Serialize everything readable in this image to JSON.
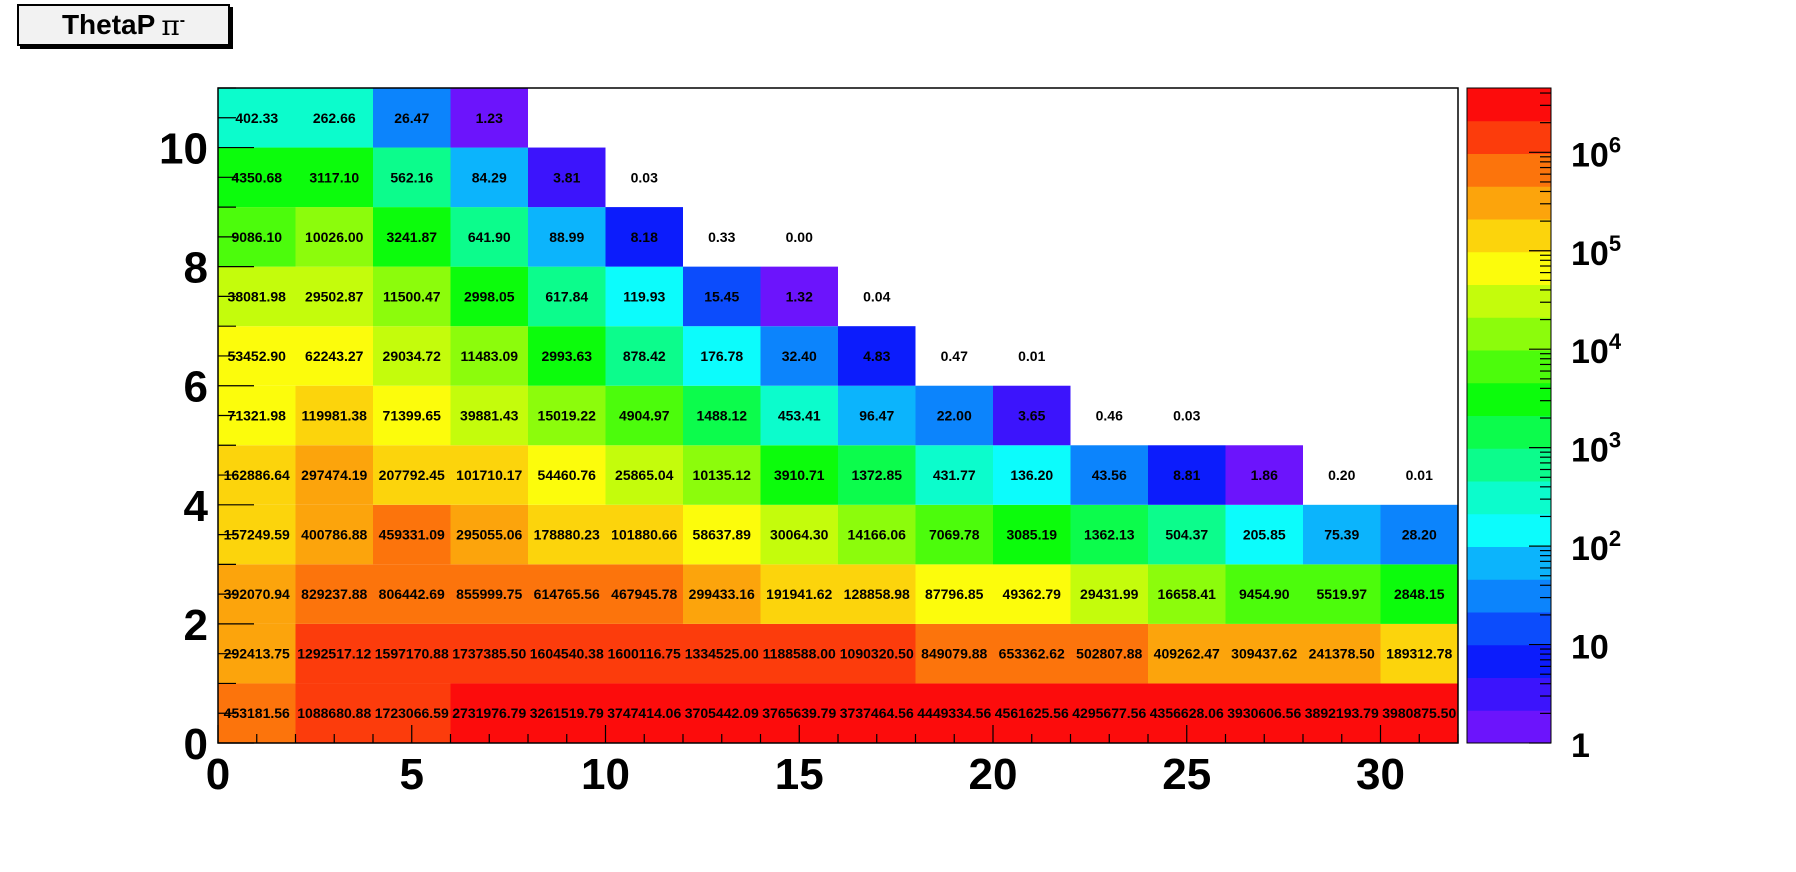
{
  "title": {
    "name": "ThetaP",
    "symbol": "π",
    "superscript": "-"
  },
  "chart_data": {
    "type": "heatmap",
    "x_bin_edges": [
      0,
      2,
      4,
      6,
      8,
      10,
      12,
      14,
      16,
      18,
      20,
      22,
      24,
      26,
      28,
      30,
      32
    ],
    "y_bin_edges": [
      0,
      1,
      2,
      3,
      4,
      5,
      6,
      7,
      8,
      9,
      10,
      11
    ],
    "xlim": [
      0,
      32
    ],
    "ylim": [
      0,
      11
    ],
    "x_ticks": [
      0,
      5,
      10,
      15,
      20,
      25,
      30
    ],
    "y_ticks": [
      0,
      2,
      4,
      6,
      8,
      10
    ],
    "z_scale": "log",
    "zlim": [
      1,
      4500000
    ],
    "colorbar_labels": [
      {
        "value": 1000000,
        "base": "10",
        "exp": "6"
      },
      {
        "value": 100000,
        "base": "10",
        "exp": "5"
      },
      {
        "value": 10000,
        "base": "10",
        "exp": "4"
      },
      {
        "value": 1000,
        "base": "10",
        "exp": "3"
      },
      {
        "value": 100,
        "base": "10",
        "exp": "2"
      },
      {
        "value": 10,
        "base": "10",
        "exp": ""
      },
      {
        "value": 1,
        "base": "1",
        "exp": ""
      }
    ],
    "rows": [
      [
        "453181.56",
        "1088680.88",
        "1723066.59",
        "2731976.79",
        "3261519.79",
        "3747414.06",
        "3705442.09",
        "3765639.79",
        "3737464.56",
        "4449334.56",
        "4561625.56",
        "4295677.56",
        "4356628.06",
        "3930606.56",
        "3892193.79",
        "3980875.50"
      ],
      [
        "292413.75",
        "1292517.12",
        "1597170.88",
        "1737385.50",
        "1604540.38",
        "1600116.75",
        "1334525.00",
        "1188588.00",
        "1090320.50",
        "849079.88",
        "653362.62",
        "502807.88",
        "409262.47",
        "309437.62",
        "241378.50",
        "189312.78"
      ],
      [
        "392070.94",
        "829237.88",
        "806442.69",
        "855999.75",
        "614765.56",
        "467945.78",
        "299433.16",
        "191941.62",
        "128858.98",
        "87796.85",
        "49362.79",
        "29431.99",
        "16658.41",
        "9454.90",
        "5519.97",
        "2848.15"
      ],
      [
        "157249.59",
        "400786.88",
        "459331.09",
        "295055.06",
        "178880.23",
        "101880.66",
        "58637.89",
        "30064.30",
        "14166.06",
        "7069.78",
        "3085.19",
        "1362.13",
        "504.37",
        "205.85",
        "75.39",
        "28.20"
      ],
      [
        "162886.64",
        "297474.19",
        "207792.45",
        "101710.17",
        "54460.76",
        "25865.04",
        "10135.12",
        "3910.71",
        "1372.85",
        "431.77",
        "136.20",
        "43.56",
        "8.81",
        "1.86",
        "0.20",
        "0.01"
      ],
      [
        "71321.98",
        "119981.38",
        "71399.65",
        "39881.43",
        "15019.22",
        "4904.97",
        "1488.12",
        "453.41",
        "96.47",
        "22.00",
        "3.65",
        "0.46",
        "0.03",
        null,
        null,
        null
      ],
      [
        "53452.90",
        "62243.27",
        "29034.72",
        "11483.09",
        "2993.63",
        "878.42",
        "176.78",
        "32.40",
        "4.83",
        "0.47",
        "0.01",
        null,
        null,
        null,
        null,
        null
      ],
      [
        "38081.98",
        "29502.87",
        "11500.47",
        "2998.05",
        "617.84",
        "119.93",
        "15.45",
        "1.32",
        "0.04",
        null,
        null,
        null,
        null,
        null,
        null,
        null
      ],
      [
        "9086.10",
        "10026.00",
        "3241.87",
        "641.90",
        "88.99",
        "8.18",
        "0.33",
        "0.00",
        null,
        null,
        null,
        null,
        null,
        null,
        null,
        null
      ],
      [
        "4350.68",
        "3117.10",
        "562.16",
        "84.29",
        "3.81",
        "0.03",
        null,
        null,
        null,
        null,
        null,
        null,
        null,
        null,
        null,
        null
      ],
      [
        "402.33",
        "262.66",
        "26.47",
        "1.23",
        null,
        null,
        null,
        null,
        null,
        null,
        null,
        null,
        null,
        null,
        null,
        null
      ]
    ],
    "palette": [
      "#6c14fc",
      "#3c14fc",
      "#0c1cfc",
      "#0c4cfc",
      "#0c84fc",
      "#0cb4fc",
      "#0cfcfc",
      "#0cfccc",
      "#0cfc8c",
      "#0cfc4c",
      "#0cfc0c",
      "#4cfc0c",
      "#8cfc0c",
      "#c4fc0c",
      "#fcfc0c",
      "#fcd40c",
      "#fca40c",
      "#fc740c",
      "#fc3c0c",
      "#fc0c0c"
    ]
  }
}
